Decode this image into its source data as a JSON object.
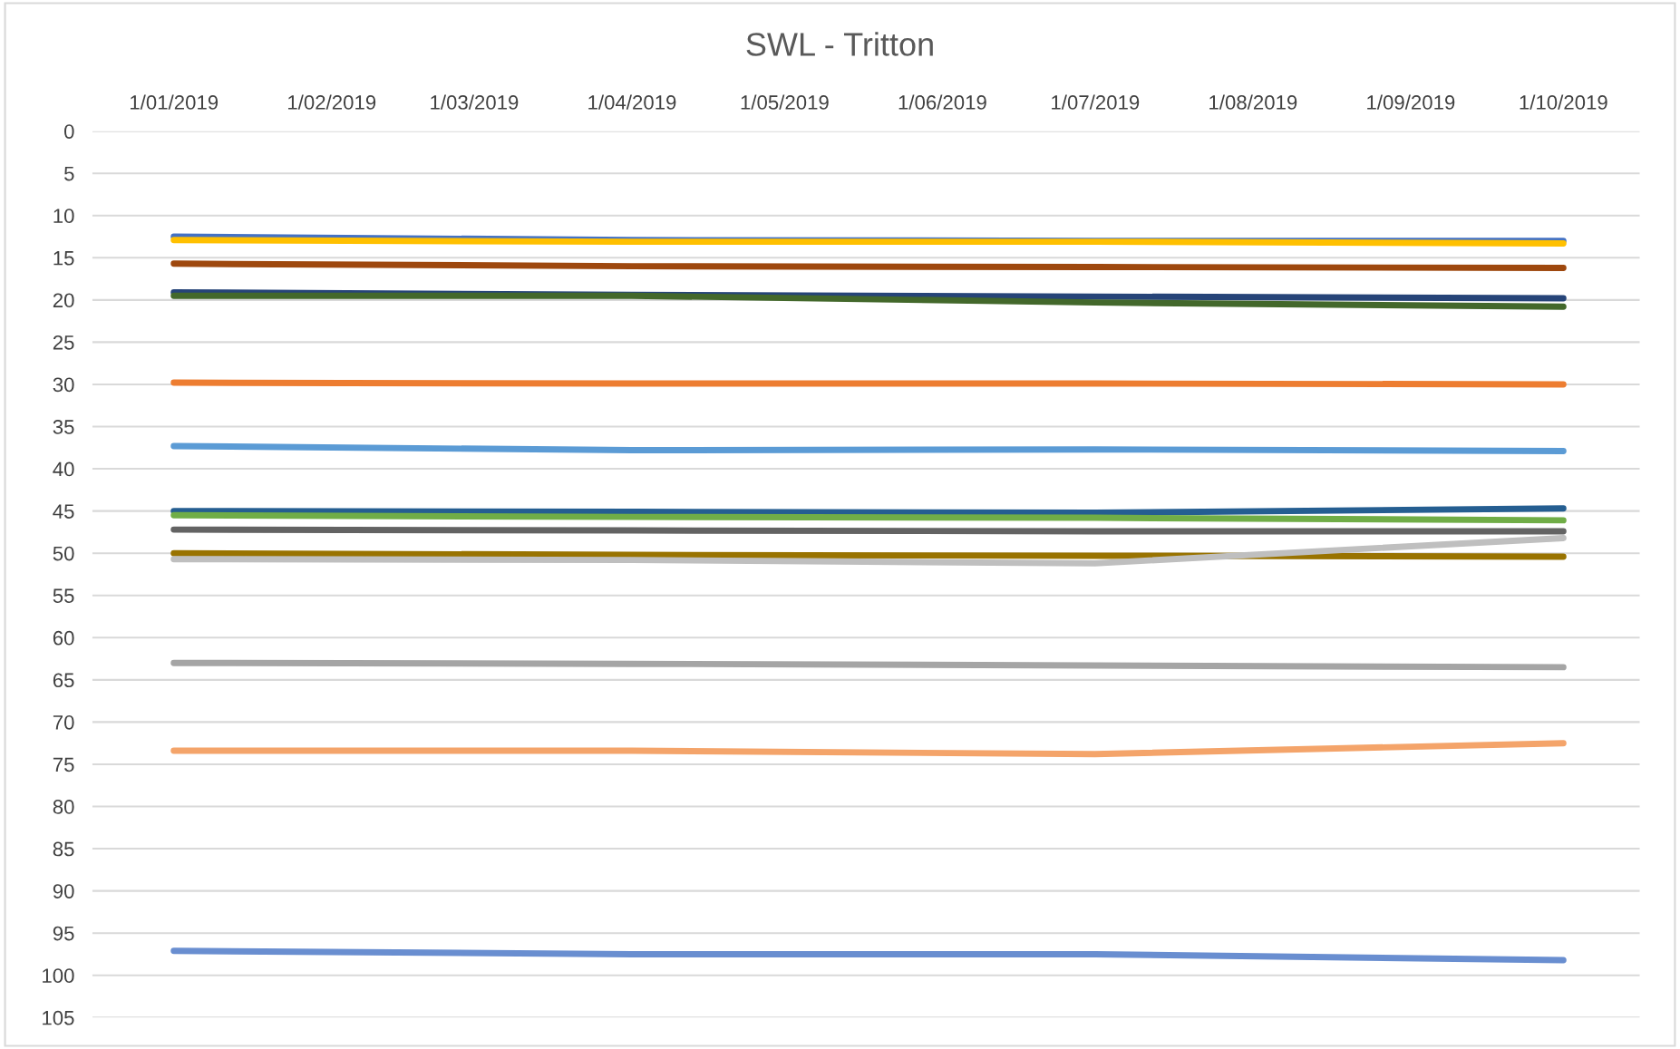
{
  "chart_data": {
    "type": "line",
    "title": "SWL - Tritton",
    "x": [
      "2019-01-01",
      "2019-04-01",
      "2019-07-01",
      "2019-10-01"
    ],
    "xlim": [
      "2018-12-16",
      "2019-10-16"
    ],
    "xticks": [
      {
        "value": "2019-01-01",
        "label": "1/01/2019"
      },
      {
        "value": "2019-02-01",
        "label": "1/02/2019"
      },
      {
        "value": "2019-03-01",
        "label": "1/03/2019"
      },
      {
        "value": "2019-04-01",
        "label": "1/04/2019"
      },
      {
        "value": "2019-05-01",
        "label": "1/05/2019"
      },
      {
        "value": "2019-06-01",
        "label": "1/06/2019"
      },
      {
        "value": "2019-07-01",
        "label": "1/07/2019"
      },
      {
        "value": "2019-08-01",
        "label": "1/08/2019"
      },
      {
        "value": "2019-09-01",
        "label": "1/09/2019"
      },
      {
        "value": "2019-10-01",
        "label": "1/10/2019"
      }
    ],
    "ylim": [
      105,
      0
    ],
    "yticks": [
      0,
      5,
      10,
      15,
      20,
      25,
      30,
      35,
      40,
      45,
      50,
      55,
      60,
      65,
      70,
      75,
      80,
      85,
      90,
      95,
      100,
      105
    ],
    "grid": "y",
    "marker": "none",
    "line_style": "solid",
    "series": [
      {
        "color": "#4472c4",
        "values": [
          12.5,
          12.9,
          13.0,
          13.0
        ]
      },
      {
        "color": "#ffc000",
        "values": [
          12.9,
          13.1,
          13.1,
          13.3
        ]
      },
      {
        "color": "#9e480e",
        "values": [
          15.7,
          16.0,
          16.1,
          16.2
        ]
      },
      {
        "color": "#264478",
        "values": [
          19.1,
          19.4,
          19.6,
          19.8
        ]
      },
      {
        "color": "#43682b",
        "values": [
          19.5,
          19.5,
          20.3,
          20.8
        ]
      },
      {
        "color": "#ed7d31",
        "values": [
          29.8,
          29.9,
          29.9,
          30.0
        ]
      },
      {
        "color": "#5b9bd5",
        "values": [
          37.3,
          37.8,
          37.7,
          37.9
        ]
      },
      {
        "color": "#255e91",
        "values": [
          45.0,
          45.1,
          45.2,
          44.7
        ]
      },
      {
        "color": "#70ad47",
        "values": [
          45.5,
          45.7,
          45.8,
          46.1
        ]
      },
      {
        "color": "#636363",
        "values": [
          47.2,
          47.3,
          47.4,
          47.4
        ]
      },
      {
        "color": "#997300",
        "values": [
          50.0,
          50.2,
          50.3,
          50.4
        ]
      },
      {
        "color": "#bfbfbf",
        "values": [
          50.7,
          50.8,
          51.2,
          48.2
        ]
      },
      {
        "color": "#a5a5a5",
        "values": [
          63.0,
          63.1,
          63.3,
          63.5
        ]
      },
      {
        "color": "#f4a46a",
        "values": [
          73.4,
          73.4,
          73.8,
          72.5
        ]
      },
      {
        "color": "#698ed0",
        "values": [
          97.1,
          97.5,
          97.5,
          98.2
        ]
      }
    ]
  }
}
